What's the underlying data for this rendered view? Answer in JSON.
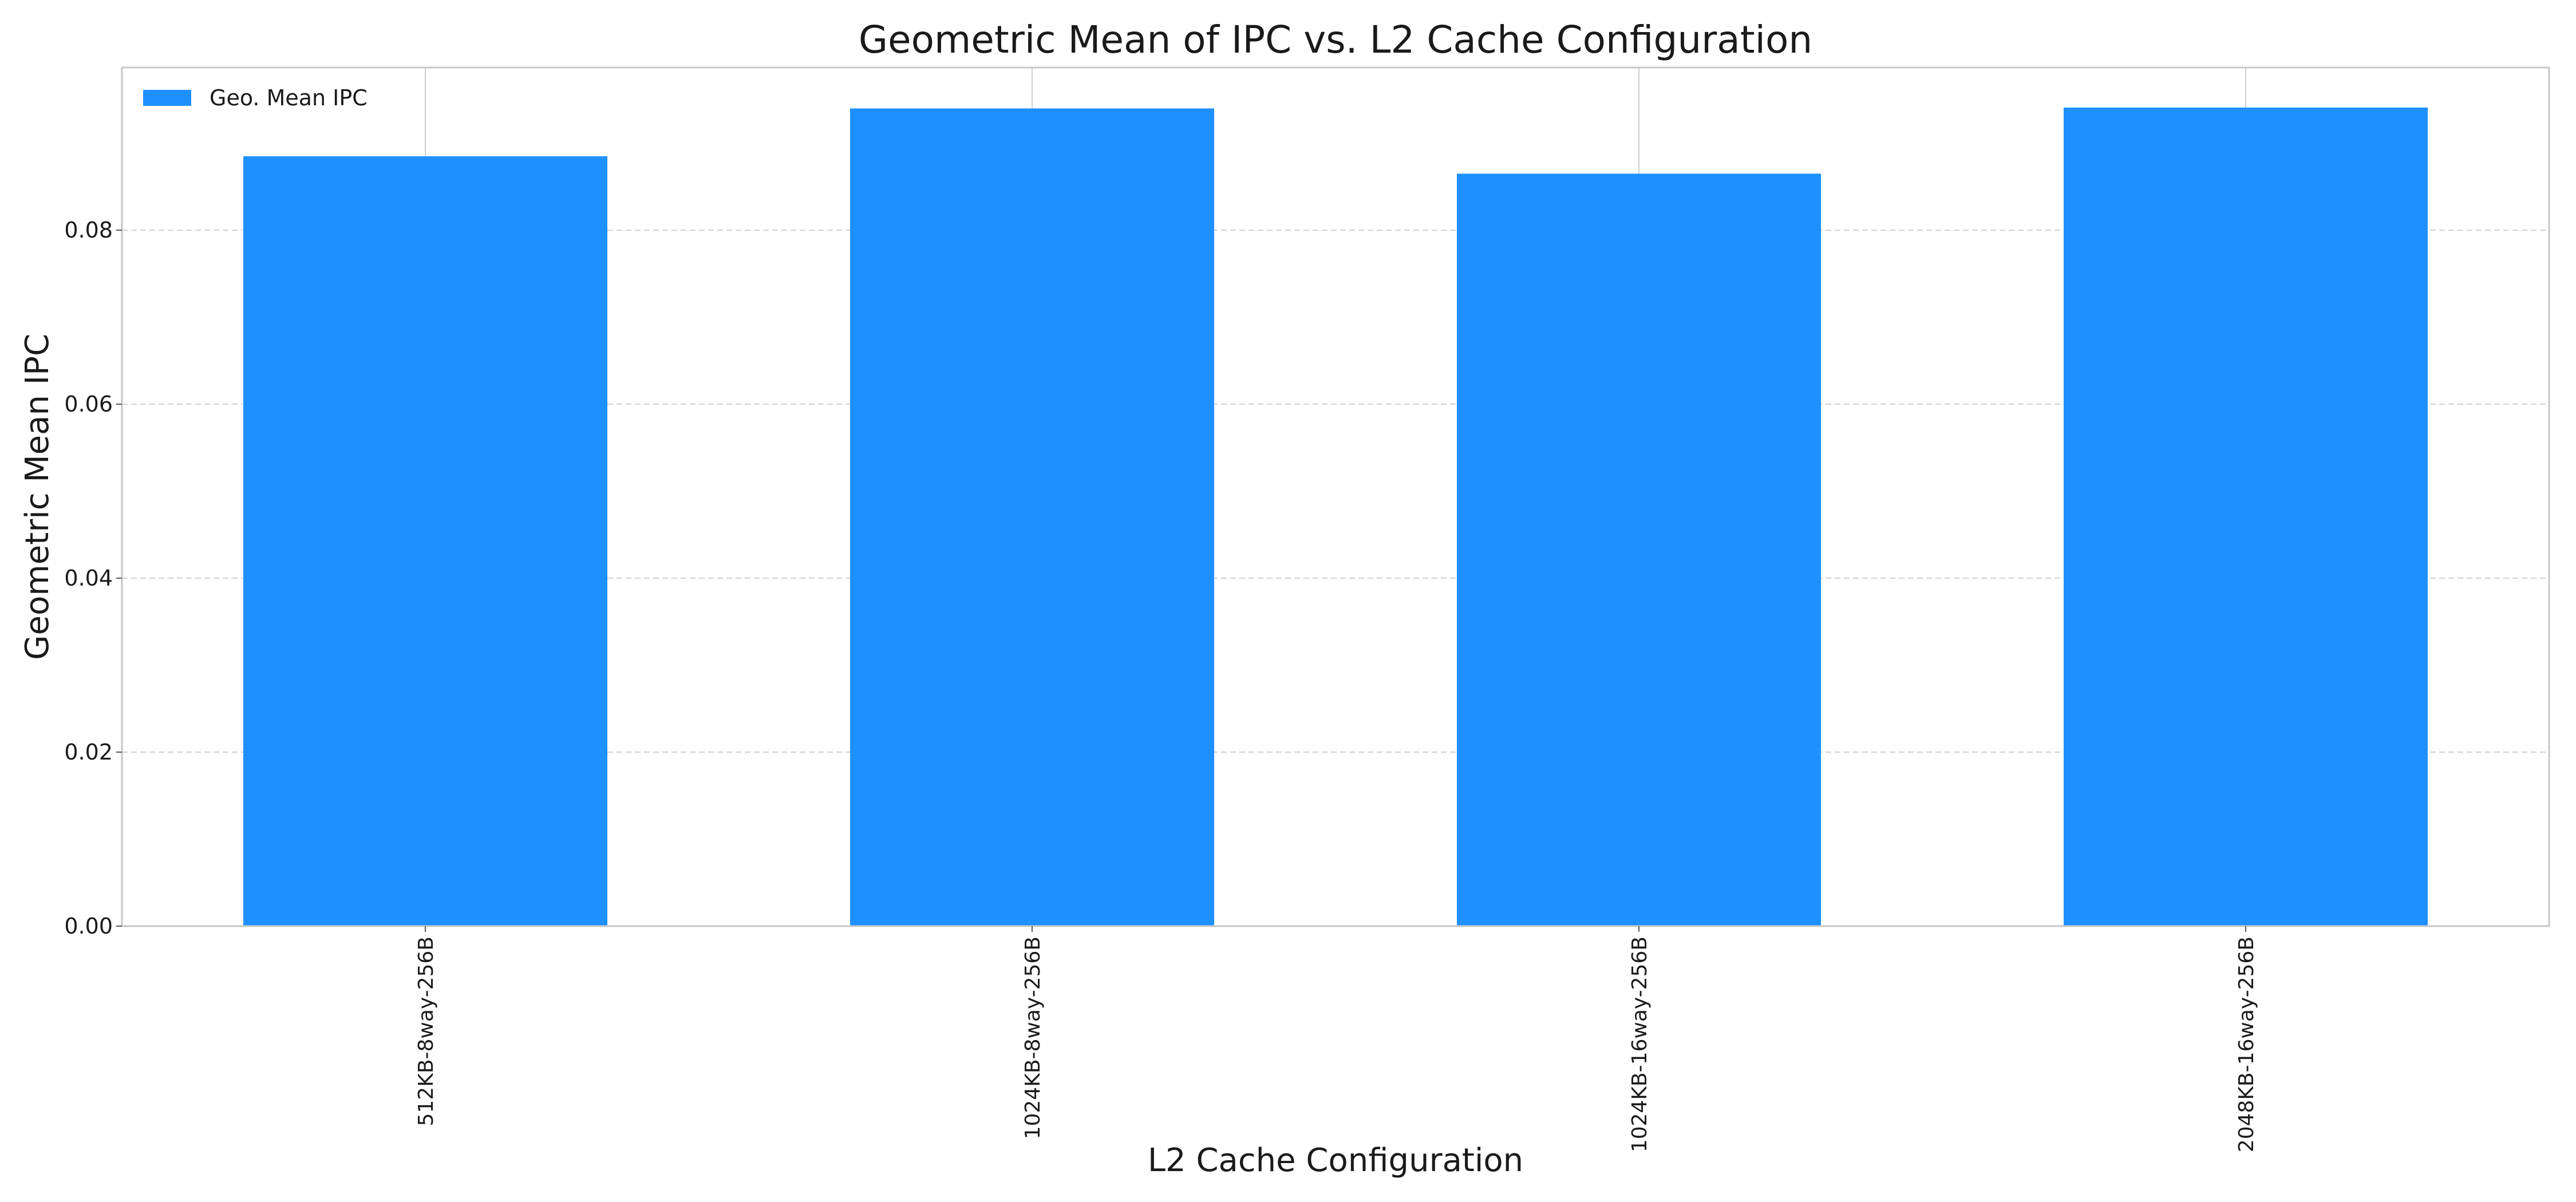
{
  "chart_data": {
    "type": "bar",
    "title": "Geometric Mean of IPC vs. L2 Cache Configuration",
    "xlabel": "L2 Cache Configuration",
    "ylabel": "Geometric Mean IPC",
    "categories": [
      "512KB-8way-256B",
      "1024KB-8way-256B",
      "1024KB-16way-256B",
      "2048KB-16way-256B"
    ],
    "series": [
      {
        "name": "Geo. Mean IPC",
        "values": [
          0.0885,
          0.094,
          0.0865,
          0.0941
        ],
        "color": "#1E90FF"
      }
    ],
    "ylim": [
      0,
      0.0987
    ],
    "yticks": [
      0.0,
      0.02,
      0.04,
      0.06,
      0.08
    ],
    "ytick_labels": [
      "0.00",
      "0.02",
      "0.04",
      "0.06",
      "0.08"
    ],
    "grid": true,
    "legend_position": "top-left"
  }
}
